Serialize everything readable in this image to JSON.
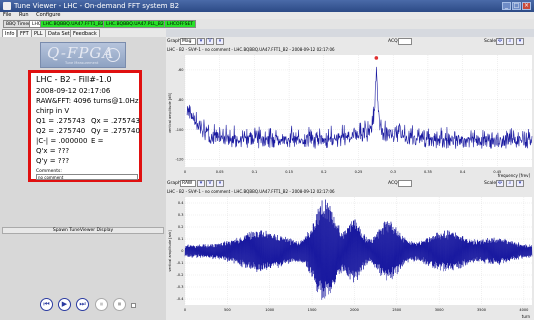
{
  "window": {
    "title": "Tune Viewer - LHC - On-demand FFT system B2",
    "controls": [
      "_",
      "□",
      "×"
    ]
  },
  "menu": [
    "File",
    "Run",
    "Configure"
  ],
  "statusbar": {
    "items": [
      "BBQ Timer",
      "LHC"
    ],
    "green_items": [
      "LHC.BQBBQ.UA47.FFT1_B2",
      "LHC.BQBBQ.UA47.PLL_B2",
      "LHCOFFSET"
    ]
  },
  "tabs": [
    "Info",
    "FFT",
    "PLL",
    "Data Sets",
    "Feedback"
  ],
  "logo": {
    "text": "Q-FPGA",
    "sub": "Tune Measurement"
  },
  "info": {
    "line1": "LHC - B2 - Fill#-1.0",
    "line2": "2008-09-12 02:17:06",
    "line3": "RAW&FFT: 4096 turns@1.0Hz",
    "line4": "chirp in V",
    "q1": "Q1 =  .275743",
    "qx": "Qx =  .275743",
    "q2": "Q2 =  .275740",
    "qy": "Qy =  .275740",
    "c": "|C-| =  .000000",
    "e": "E =",
    "qpx": "Q'x =  ???",
    "qpy": "Q'y =  ???",
    "comments_label": "Comments:",
    "comments_value": "no comment"
  },
  "spawn_button": "Spawn TuneViewer Display",
  "graph_top": {
    "graph_label": "Graph:",
    "graph_select": "Mag",
    "acq_label": "ACQ#",
    "scale_label": "Scale",
    "title": "LHC - B2 - SV#-1 - no comment - LHC.BQBBQ.UA47.FFT1_B2 - 2008-09-12 02:17:06",
    "ylabel": "vertical amplitude [dB]",
    "xlabel": "frequency [frev]"
  },
  "graph_bottom": {
    "graph_label": "Graph:",
    "graph_select": "RAW",
    "acq_label": "ACQ#",
    "scale_label": "Scale",
    "title": "LHC - B2 - SV#-1 - no comment - LHC.BQBBQ.UA47.FFT1_B2 - 2008-09-12 02:17:06",
    "ylabel": "vertical amplitude [arb]",
    "xlabel": "turn"
  },
  "chart_data": [
    {
      "type": "line",
      "title": "LHC - B2 - SV#-1 - no comment - LHC.BQBBQ.UA47.FFT1_B2 - 2008-09-12 02:17:06",
      "xlabel": "frequency [frev]",
      "ylabel": "vertical amplitude [dB]",
      "xlim": [
        0,
        0.5
      ],
      "ylim": [
        -125,
        -50
      ],
      "x_ticks": [
        "0",
        "0.05",
        "0.1",
        "0.15",
        "0.2",
        "0.25",
        "0.3",
        "0.35",
        "0.4",
        "0.45"
      ],
      "y_ticks": [
        "-60",
        "-80",
        "-100",
        "-120"
      ],
      "peak": {
        "x": 0.2757,
        "y": -52
      },
      "series_color": "#1a1aa0"
    },
    {
      "type": "line",
      "title": "LHC - B2 - SV#-1 - no comment - LHC.BQBBQ.UA47.FFT1_B2 - 2008-09-12 02:17:06",
      "xlabel": "turn",
      "ylabel": "vertical amplitude [arb]",
      "xlim": [
        0,
        4096
      ],
      "ylim": [
        -0.45,
        0.45
      ],
      "x_ticks": [
        "0",
        "500",
        "1000",
        "1500",
        "2000",
        "2500",
        "3000",
        "3500",
        "4000"
      ],
      "y_ticks": [
        "0.4",
        "0.3",
        "0.2",
        "0.1",
        "0",
        "-0.1",
        "-0.2",
        "-0.3",
        "-0.4"
      ],
      "series_color": "#1a1aa0"
    }
  ]
}
